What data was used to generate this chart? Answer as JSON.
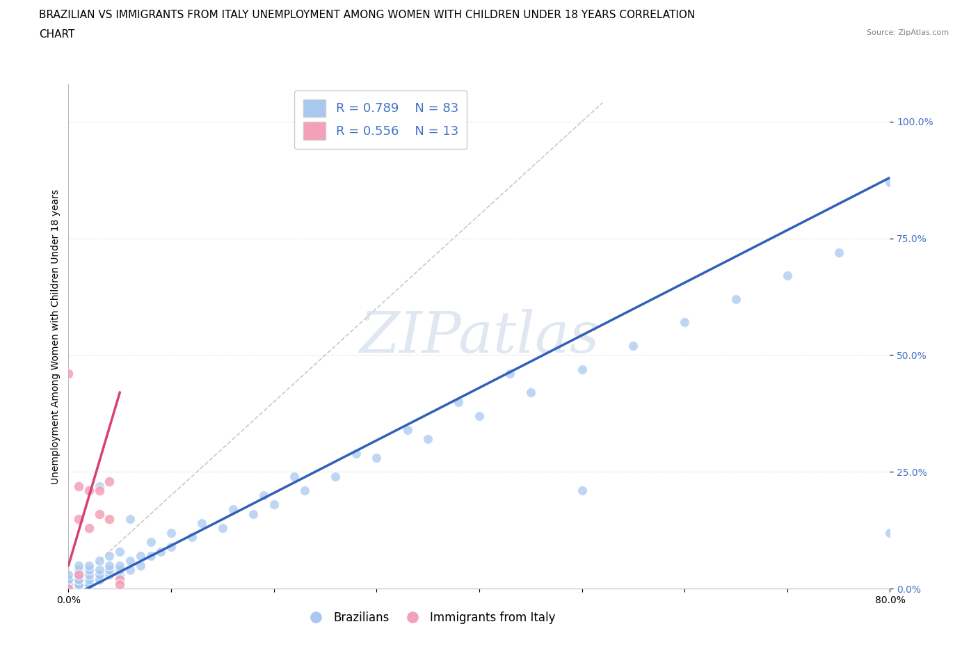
{
  "title_line1": "BRAZILIAN VS IMMIGRANTS FROM ITALY UNEMPLOYMENT AMONG WOMEN WITH CHILDREN UNDER 18 YEARS CORRELATION",
  "title_line2": "CHART",
  "source": "Source: ZipAtlas.com",
  "ylabel": "Unemployment Among Women with Children Under 18 years",
  "xmin": 0.0,
  "xmax": 0.8,
  "ymin": 0.0,
  "ymax": 1.08,
  "yticks": [
    0.0,
    0.25,
    0.5,
    0.75,
    1.0
  ],
  "ytick_labels": [
    "0.0%",
    "25.0%",
    "50.0%",
    "75.0%",
    "100.0%"
  ],
  "xticks": [
    0.0,
    0.1,
    0.2,
    0.3,
    0.4,
    0.5,
    0.6,
    0.7,
    0.8
  ],
  "xtick_labels": [
    "0.0%",
    "",
    "",
    "",
    "",
    "",
    "",
    "",
    "80.0%"
  ],
  "blue_R": 0.789,
  "blue_N": 83,
  "pink_R": 0.556,
  "pink_N": 13,
  "blue_color": "#a8c8f0",
  "pink_color": "#f4a0b8",
  "blue_line_color": "#3060b8",
  "pink_line_color": "#d84070",
  "ref_line_color": "#d0c8c0",
  "watermark_color": "#ccd8e8",
  "grid_color": "#e8e8e8",
  "background_color": "#ffffff",
  "title_fontsize": 11,
  "axis_label_fontsize": 10,
  "tick_fontsize": 10,
  "blue_scatter": {
    "x": [
      0.0,
      0.0,
      0.0,
      0.0,
      0.0,
      0.0,
      0.0,
      0.0,
      0.0,
      0.0,
      0.0,
      0.0,
      0.0,
      0.0,
      0.0,
      0.0,
      0.01,
      0.01,
      0.01,
      0.01,
      0.01,
      0.01,
      0.01,
      0.01,
      0.02,
      0.02,
      0.02,
      0.02,
      0.02,
      0.03,
      0.03,
      0.03,
      0.03,
      0.04,
      0.04,
      0.04,
      0.05,
      0.05,
      0.05,
      0.06,
      0.06,
      0.07,
      0.07,
      0.08,
      0.09,
      0.1,
      0.12,
      0.15,
      0.18,
      0.2,
      0.23,
      0.26,
      0.3,
      0.35,
      0.4,
      0.45,
      0.5,
      0.55,
      0.6,
      0.65,
      0.7,
      0.75,
      0.8,
      0.5,
      0.8,
      0.03,
      0.06,
      0.01,
      0.01,
      0.02,
      0.03,
      0.04,
      0.05,
      0.08,
      0.1,
      0.13,
      0.16,
      0.19,
      0.22,
      0.28,
      0.33,
      0.38,
      0.43
    ],
    "y": [
      0.0,
      0.0,
      0.0,
      0.0,
      0.0,
      0.0,
      0.0,
      0.0,
      0.01,
      0.01,
      0.01,
      0.01,
      0.02,
      0.02,
      0.02,
      0.03,
      0.0,
      0.0,
      0.01,
      0.01,
      0.01,
      0.02,
      0.02,
      0.03,
      0.01,
      0.01,
      0.02,
      0.03,
      0.04,
      0.02,
      0.02,
      0.03,
      0.04,
      0.03,
      0.04,
      0.05,
      0.03,
      0.04,
      0.05,
      0.04,
      0.06,
      0.05,
      0.07,
      0.07,
      0.08,
      0.09,
      0.11,
      0.13,
      0.16,
      0.18,
      0.21,
      0.24,
      0.28,
      0.32,
      0.37,
      0.42,
      0.47,
      0.52,
      0.57,
      0.62,
      0.67,
      0.72,
      0.87,
      0.21,
      0.12,
      0.22,
      0.15,
      0.04,
      0.05,
      0.05,
      0.06,
      0.07,
      0.08,
      0.1,
      0.12,
      0.14,
      0.17,
      0.2,
      0.24,
      0.29,
      0.34,
      0.4,
      0.46
    ]
  },
  "pink_scatter": {
    "x": [
      0.0,
      0.0,
      0.01,
      0.01,
      0.02,
      0.02,
      0.03,
      0.03,
      0.04,
      0.04,
      0.05,
      0.05,
      0.01
    ],
    "y": [
      0.0,
      0.46,
      0.15,
      0.22,
      0.13,
      0.21,
      0.16,
      0.21,
      0.15,
      0.23,
      0.02,
      0.01,
      0.03
    ]
  },
  "blue_line_x": [
    0.0,
    0.8
  ],
  "blue_line_y": [
    -0.02,
    0.88
  ],
  "pink_line_x": [
    0.0,
    0.05
  ],
  "pink_line_y": [
    0.05,
    0.42
  ],
  "ref_line_x": [
    0.0,
    0.52
  ],
  "ref_line_y": [
    0.0,
    1.04
  ]
}
